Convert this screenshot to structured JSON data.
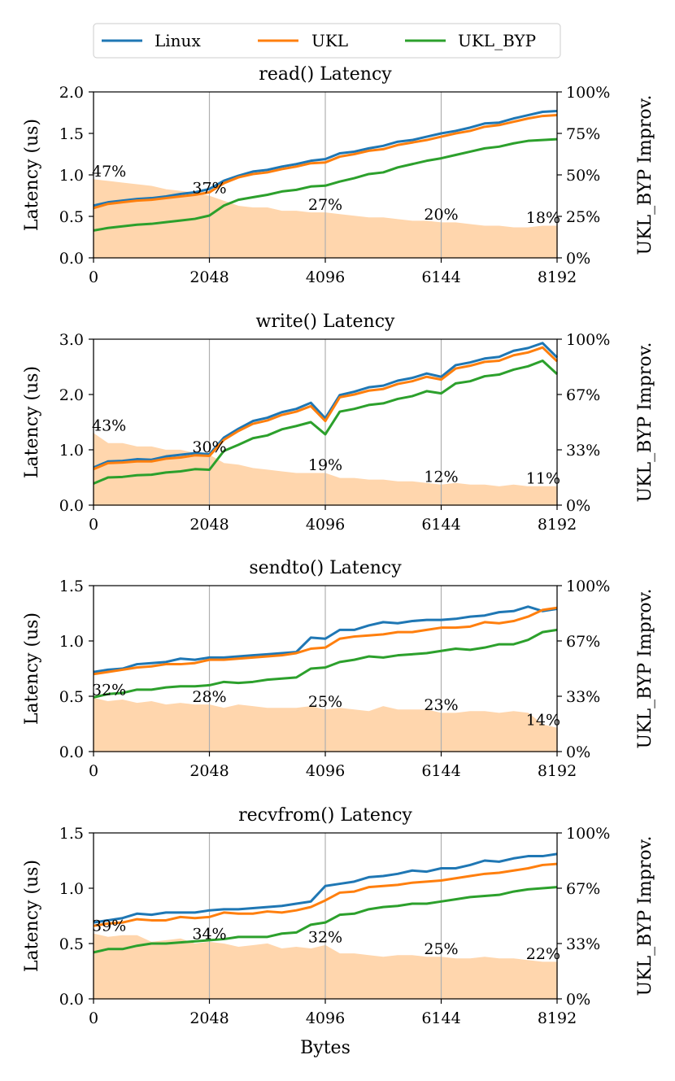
{
  "colors": {
    "Linux": "#1f77b4",
    "UKL": "#ff7f0e",
    "UKL_BYP": "#2ca02c",
    "improvement_fill": "#ffcc99",
    "grid": "#b0b0b0"
  },
  "legend": {
    "items": [
      "Linux",
      "UKL",
      "UKL_BYP"
    ]
  },
  "xlabel": "Bytes",
  "chart_data": [
    {
      "type": "line",
      "title": "read() Latency",
      "xlabel": "Bytes",
      "ylabel": "Latency (us)",
      "ylabel_right": "UKL_BYP Improv.",
      "x": [
        0,
        256,
        512,
        768,
        1024,
        1280,
        1536,
        1792,
        2048,
        2304,
        2560,
        2816,
        3072,
        3328,
        3584,
        3840,
        4096,
        4352,
        4608,
        4864,
        5120,
        5376,
        5632,
        5888,
        6144,
        6400,
        6656,
        6912,
        7168,
        7424,
        7680,
        7936,
        8192
      ],
      "xticks": [
        0,
        2048,
        4096,
        6144,
        8192
      ],
      "xtick_labels": [
        "0",
        "2048",
        "4096",
        "6144",
        "8192"
      ],
      "xlim": [
        0,
        8192
      ],
      "ylim": [
        0,
        2.0
      ],
      "yticks": [
        0.0,
        0.5,
        1.0,
        1.5,
        2.0
      ],
      "ytick_labels": [
        "0.0",
        "0.5",
        "1.0",
        "1.5",
        "2.0"
      ],
      "ylim_right": [
        0,
        100
      ],
      "yticks_right": [
        0,
        25,
        50,
        75,
        100
      ],
      "ytick_labels_right": [
        "0%",
        "25%",
        "50%",
        "75%",
        "100%"
      ],
      "series": [
        {
          "name": "Linux",
          "values": [
            0.63,
            0.67,
            0.69,
            0.71,
            0.72,
            0.74,
            0.77,
            0.79,
            0.83,
            0.93,
            0.99,
            1.04,
            1.06,
            1.1,
            1.13,
            1.17,
            1.19,
            1.26,
            1.28,
            1.32,
            1.35,
            1.4,
            1.42,
            1.46,
            1.5,
            1.53,
            1.57,
            1.62,
            1.63,
            1.68,
            1.72,
            1.76,
            1.77
          ]
        },
        {
          "name": "UKL",
          "values": [
            0.6,
            0.65,
            0.67,
            0.69,
            0.7,
            0.72,
            0.74,
            0.76,
            0.79,
            0.9,
            0.97,
            1.01,
            1.03,
            1.07,
            1.1,
            1.14,
            1.15,
            1.22,
            1.25,
            1.29,
            1.31,
            1.36,
            1.39,
            1.42,
            1.46,
            1.5,
            1.53,
            1.58,
            1.6,
            1.64,
            1.68,
            1.71,
            1.72
          ]
        },
        {
          "name": "UKL_BYP",
          "values": [
            0.33,
            0.36,
            0.38,
            0.4,
            0.41,
            0.43,
            0.45,
            0.47,
            0.51,
            0.63,
            0.7,
            0.73,
            0.76,
            0.8,
            0.82,
            0.86,
            0.87,
            0.92,
            0.96,
            1.01,
            1.03,
            1.09,
            1.13,
            1.17,
            1.2,
            1.24,
            1.28,
            1.32,
            1.34,
            1.38,
            1.41,
            1.42,
            1.43
          ]
        }
      ],
      "improvement": [
        47,
        46,
        45,
        44,
        43,
        41,
        40,
        39,
        37,
        34,
        31,
        30,
        30,
        28,
        28,
        27,
        27,
        26,
        25,
        24,
        24,
        23,
        22,
        22,
        21,
        21,
        20,
        19,
        19,
        18,
        18,
        19,
        19
      ],
      "annotations": [
        {
          "x": 0,
          "text": "47%"
        },
        {
          "x": 2048,
          "text": "37%"
        },
        {
          "x": 4096,
          "text": "27%"
        },
        {
          "x": 6144,
          "text": "20%"
        },
        {
          "x": 8192,
          "text": "18%"
        }
      ]
    },
    {
      "type": "line",
      "title": "write() Latency",
      "xlabel": "Bytes",
      "ylabel": "Latency (us)",
      "ylabel_right": "UKL_BYP Improv.",
      "x": [
        0,
        256,
        512,
        768,
        1024,
        1280,
        1536,
        1792,
        2048,
        2304,
        2560,
        2816,
        3072,
        3328,
        3584,
        3840,
        4096,
        4352,
        4608,
        4864,
        5120,
        5376,
        5632,
        5888,
        6144,
        6400,
        6656,
        6912,
        7168,
        7424,
        7680,
        7936,
        8192
      ],
      "xticks": [
        0,
        2048,
        4096,
        6144,
        8192
      ],
      "xtick_labels": [
        "0",
        "2048",
        "4096",
        "6144",
        "8192"
      ],
      "xlim": [
        0,
        8192
      ],
      "ylim": [
        0,
        3.0
      ],
      "yticks": [
        0.0,
        1.0,
        2.0,
        3.0
      ],
      "ytick_labels": [
        "0.0",
        "1.0",
        "2.0",
        "3.0"
      ],
      "ylim_right": [
        0,
        100
      ],
      "yticks_right": [
        0,
        33.33,
        66.67,
        100
      ],
      "ytick_labels_right": [
        "0%",
        "33%",
        "67%",
        "100%"
      ],
      "series": [
        {
          "name": "Linux",
          "values": [
            0.68,
            0.79,
            0.8,
            0.83,
            0.82,
            0.88,
            0.91,
            0.94,
            0.92,
            1.22,
            1.38,
            1.52,
            1.58,
            1.68,
            1.74,
            1.85,
            1.57,
            1.99,
            2.05,
            2.13,
            2.16,
            2.25,
            2.3,
            2.38,
            2.32,
            2.53,
            2.58,
            2.65,
            2.68,
            2.79,
            2.84,
            2.93,
            2.67
          ]
        },
        {
          "name": "UKL",
          "values": [
            0.65,
            0.76,
            0.77,
            0.79,
            0.79,
            0.84,
            0.86,
            0.9,
            0.89,
            1.18,
            1.34,
            1.47,
            1.53,
            1.63,
            1.69,
            1.79,
            1.52,
            1.95,
            2.0,
            2.07,
            2.1,
            2.19,
            2.24,
            2.32,
            2.27,
            2.47,
            2.52,
            2.59,
            2.61,
            2.71,
            2.76,
            2.85,
            2.6
          ]
        },
        {
          "name": "UKL_BYP",
          "values": [
            0.39,
            0.5,
            0.51,
            0.54,
            0.55,
            0.59,
            0.61,
            0.65,
            0.64,
            0.98,
            1.09,
            1.21,
            1.26,
            1.37,
            1.43,
            1.5,
            1.28,
            1.69,
            1.74,
            1.81,
            1.84,
            1.92,
            1.97,
            2.06,
            2.02,
            2.2,
            2.24,
            2.33,
            2.36,
            2.45,
            2.51,
            2.61,
            2.37
          ]
        }
      ],
      "improvement": [
        43,
        37,
        37,
        35,
        35,
        33,
        33,
        31,
        30,
        25,
        24,
        22,
        21,
        20,
        19,
        19,
        19,
        16,
        16,
        15,
        15,
        14,
        14,
        13,
        12,
        13,
        12,
        12,
        11,
        12,
        11,
        11,
        11
      ],
      "annotations": [
        {
          "x": 0,
          "text": "43%"
        },
        {
          "x": 2048,
          "text": "30%"
        },
        {
          "x": 4096,
          "text": "19%"
        },
        {
          "x": 6144,
          "text": "12%"
        },
        {
          "x": 8192,
          "text": "11%"
        }
      ]
    },
    {
      "type": "line",
      "title": "sendto() Latency",
      "xlabel": "Bytes",
      "ylabel": "Latency (us)",
      "ylabel_right": "UKL_BYP Improv.",
      "x": [
        0,
        256,
        512,
        768,
        1024,
        1280,
        1536,
        1792,
        2048,
        2304,
        2560,
        2816,
        3072,
        3328,
        3584,
        3840,
        4096,
        4352,
        4608,
        4864,
        5120,
        5376,
        5632,
        5888,
        6144,
        6400,
        6656,
        6912,
        7168,
        7424,
        7680,
        7936,
        8192
      ],
      "xticks": [
        0,
        2048,
        4096,
        6144,
        8192
      ],
      "xtick_labels": [
        "0",
        "2048",
        "4096",
        "6144",
        "8192"
      ],
      "xlim": [
        0,
        8192
      ],
      "ylim": [
        0,
        1.5
      ],
      "yticks": [
        0.0,
        0.5,
        1.0,
        1.5
      ],
      "ytick_labels": [
        "0.0",
        "0.5",
        "1.0",
        "1.5"
      ],
      "ylim_right": [
        0,
        100
      ],
      "yticks_right": [
        0,
        33.33,
        66.67,
        100
      ],
      "ytick_labels_right": [
        "0%",
        "33%",
        "67%",
        "100%"
      ],
      "series": [
        {
          "name": "Linux",
          "values": [
            0.72,
            0.74,
            0.75,
            0.79,
            0.8,
            0.81,
            0.84,
            0.83,
            0.85,
            0.85,
            0.86,
            0.87,
            0.88,
            0.89,
            0.9,
            1.03,
            1.02,
            1.1,
            1.1,
            1.14,
            1.17,
            1.16,
            1.18,
            1.19,
            1.19,
            1.2,
            1.22,
            1.23,
            1.26,
            1.27,
            1.31,
            1.27,
            1.29
          ]
        },
        {
          "name": "UKL",
          "values": [
            0.7,
            0.72,
            0.74,
            0.76,
            0.77,
            0.79,
            0.79,
            0.8,
            0.83,
            0.83,
            0.84,
            0.85,
            0.86,
            0.87,
            0.89,
            0.93,
            0.94,
            1.02,
            1.04,
            1.05,
            1.06,
            1.08,
            1.08,
            1.1,
            1.12,
            1.12,
            1.13,
            1.17,
            1.16,
            1.18,
            1.22,
            1.28,
            1.3
          ]
        },
        {
          "name": "UKL_BYP",
          "values": [
            0.49,
            0.52,
            0.53,
            0.56,
            0.56,
            0.58,
            0.59,
            0.59,
            0.6,
            0.63,
            0.62,
            0.63,
            0.65,
            0.66,
            0.67,
            0.75,
            0.76,
            0.81,
            0.83,
            0.86,
            0.85,
            0.87,
            0.88,
            0.89,
            0.91,
            0.93,
            0.92,
            0.94,
            0.97,
            0.97,
            1.01,
            1.08,
            1.1
          ]
        }
      ],
      "improvement": [
        32,
        30,
        31,
        29,
        30,
        28,
        29,
        28,
        28,
        26,
        28,
        27,
        26,
        26,
        26,
        27,
        25,
        26,
        25,
        24,
        27,
        25,
        25,
        25,
        23,
        23,
        24,
        24,
        23,
        24,
        23,
        16,
        14
      ],
      "annotations": [
        {
          "x": 0,
          "text": "32%"
        },
        {
          "x": 2048,
          "text": "28%"
        },
        {
          "x": 4096,
          "text": "25%"
        },
        {
          "x": 6144,
          "text": "23%"
        },
        {
          "x": 8192,
          "text": "14%"
        }
      ]
    },
    {
      "type": "line",
      "title": "recvfrom() Latency",
      "xlabel": "Bytes",
      "ylabel": "Latency (us)",
      "ylabel_right": "UKL_BYP Improv.",
      "x": [
        0,
        256,
        512,
        768,
        1024,
        1280,
        1536,
        1792,
        2048,
        2304,
        2560,
        2816,
        3072,
        3328,
        3584,
        3840,
        4096,
        4352,
        4608,
        4864,
        5120,
        5376,
        5632,
        5888,
        6144,
        6400,
        6656,
        6912,
        7168,
        7424,
        7680,
        7936,
        8192
      ],
      "xticks": [
        0,
        2048,
        4096,
        6144,
        8192
      ],
      "xtick_labels": [
        "0",
        "2048",
        "4096",
        "6144",
        "8192"
      ],
      "xlim": [
        0,
        8192
      ],
      "ylim": [
        0,
        1.5
      ],
      "yticks": [
        0.0,
        0.5,
        1.0,
        1.5
      ],
      "ytick_labels": [
        "0.0",
        "0.5",
        "1.0",
        "1.5"
      ],
      "ylim_right": [
        0,
        100
      ],
      "yticks_right": [
        0,
        33.33,
        66.67,
        100
      ],
      "ytick_labels_right": [
        "0%",
        "33%",
        "67%",
        "100%"
      ],
      "series": [
        {
          "name": "Linux",
          "values": [
            0.69,
            0.71,
            0.73,
            0.77,
            0.76,
            0.78,
            0.78,
            0.78,
            0.8,
            0.81,
            0.81,
            0.82,
            0.83,
            0.84,
            0.86,
            0.88,
            1.02,
            1.04,
            1.06,
            1.1,
            1.11,
            1.13,
            1.16,
            1.15,
            1.18,
            1.18,
            1.21,
            1.25,
            1.24,
            1.27,
            1.29,
            1.29,
            1.31
          ]
        },
        {
          "name": "UKL",
          "values": [
            0.66,
            0.68,
            0.69,
            0.72,
            0.71,
            0.71,
            0.74,
            0.73,
            0.74,
            0.78,
            0.77,
            0.77,
            0.79,
            0.78,
            0.8,
            0.83,
            0.89,
            0.96,
            0.97,
            1.01,
            1.02,
            1.03,
            1.05,
            1.06,
            1.07,
            1.09,
            1.11,
            1.13,
            1.14,
            1.16,
            1.18,
            1.21,
            1.22
          ]
        },
        {
          "name": "UKL_BYP",
          "values": [
            0.42,
            0.45,
            0.45,
            0.48,
            0.5,
            0.5,
            0.51,
            0.52,
            0.53,
            0.54,
            0.56,
            0.56,
            0.56,
            0.59,
            0.6,
            0.67,
            0.69,
            0.76,
            0.77,
            0.81,
            0.83,
            0.84,
            0.86,
            0.86,
            0.88,
            0.9,
            0.92,
            0.93,
            0.94,
            0.97,
            0.99,
            1.0,
            1.01
          ]
        }
      ],
      "improvement": [
        39,
        37,
        38,
        38,
        34,
        35,
        36,
        33,
        34,
        33,
        31,
        32,
        33,
        30,
        31,
        30,
        32,
        27,
        27,
        26,
        25,
        26,
        26,
        25,
        25,
        24,
        24,
        25,
        24,
        24,
        23,
        22,
        22
      ],
      "annotations": [
        {
          "x": 0,
          "text": "39%"
        },
        {
          "x": 2048,
          "text": "34%"
        },
        {
          "x": 4096,
          "text": "32%"
        },
        {
          "x": 6144,
          "text": "25%"
        },
        {
          "x": 8192,
          "text": "22%"
        }
      ]
    }
  ]
}
